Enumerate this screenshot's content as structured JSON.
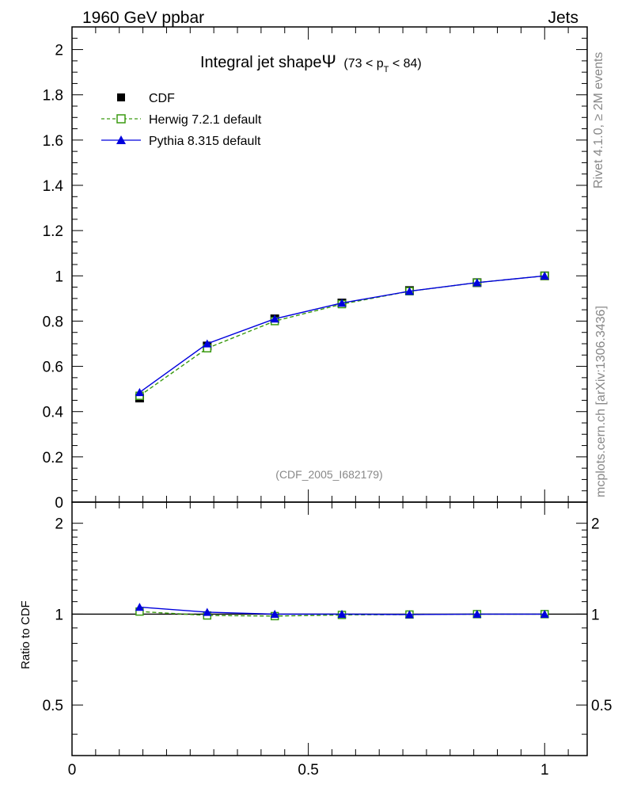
{
  "chart_data": [
    {
      "type": "line",
      "panel": "main",
      "header_left": "1960 GeV ppbar",
      "header_right": "Jets",
      "title": "Integral jet shape",
      "title_symbol": "Ψ",
      "title_range_pre": "(73 < p",
      "title_range_sub": "T",
      "title_range_post": " < 84)",
      "analysis_label": "(CDF_2005_I682179)",
      "side_label_top": "Rivet 4.1.0, ≥ 2M events",
      "side_label_bottom": "mcplots.cern.ch [arXiv:1306.3436]",
      "xlim": [
        0,
        1.09
      ],
      "ylim": [
        0,
        2.1
      ],
      "y_ticks": [
        0,
        0.2,
        0.4,
        0.6,
        0.8,
        1,
        1.2,
        1.4,
        1.6,
        1.8,
        2
      ],
      "y_tick_labels": [
        "0",
        "0.2",
        "0.4",
        "0.6",
        "0.8",
        "1",
        "1.2",
        "1.4",
        "1.6",
        "1.8",
        "2"
      ],
      "x": [
        0.143,
        0.286,
        0.429,
        0.571,
        0.714,
        0.857,
        1.0
      ],
      "series": [
        {
          "name": "CDF",
          "values": [
            0.46,
            0.69,
            0.81,
            0.88,
            0.935,
            0.97,
            1.0
          ],
          "color": "#000000",
          "marker": "square-filled",
          "line": "none"
        },
        {
          "name": "Herwig 7.2.1 default",
          "values": [
            0.47,
            0.68,
            0.8,
            0.875,
            0.932,
            0.97,
            1.0
          ],
          "color": "#3a9a10",
          "marker": "square-open",
          "line": "dashed"
        },
        {
          "name": "Pythia 8.315 default",
          "values": [
            0.485,
            0.7,
            0.81,
            0.88,
            0.932,
            0.97,
            1.0
          ],
          "color": "#0000dd",
          "marker": "triangle-filled",
          "line": "solid"
        }
      ]
    },
    {
      "type": "line",
      "panel": "ratio",
      "ylabel": "Ratio to CDF",
      "xlim": [
        0,
        1.09
      ],
      "ylim": [
        0.34,
        2.35
      ],
      "y_scale": "log",
      "y_ticks": [
        0.5,
        1,
        2
      ],
      "y_tick_labels": [
        "0.5",
        "1",
        "2"
      ],
      "x_ticks": [
        0,
        0.5,
        1
      ],
      "x_tick_labels": [
        "0",
        "0.5",
        "1"
      ],
      "x": [
        0.143,
        0.286,
        0.429,
        0.571,
        0.714,
        0.857,
        1.0
      ],
      "series": [
        {
          "name": "Herwig 7.2.1 default",
          "values": [
            1.02,
            0.99,
            0.985,
            0.994,
            0.997,
            1.0,
            1.0
          ],
          "color": "#3a9a10"
        },
        {
          "name": "Pythia 8.315 default",
          "values": [
            1.055,
            1.015,
            1.0,
            1.0,
            0.997,
            1.0,
            1.0
          ],
          "color": "#0000dd"
        }
      ]
    }
  ]
}
